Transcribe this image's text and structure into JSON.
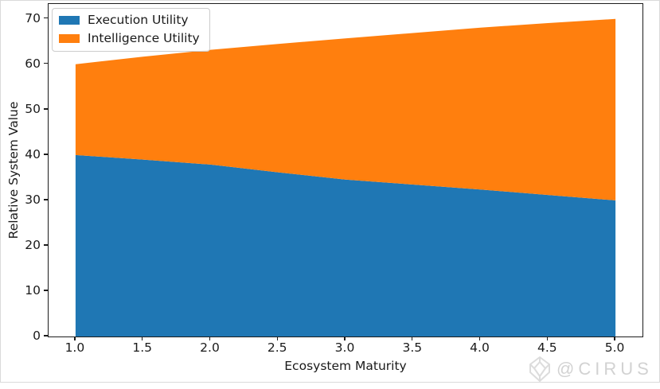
{
  "figure": {
    "watermark": {
      "text": "@CIRUS",
      "logo": "cirus-diamond-logo",
      "color": "#d2d2d2"
    },
    "border_color": "#dadada",
    "background": "#ffffff"
  },
  "chart_data": {
    "type": "area",
    "stacked": true,
    "grid": false,
    "x": [
      1.0,
      1.5,
      2.0,
      2.5,
      3.0,
      3.5,
      4.0,
      4.5,
      5.0
    ],
    "series": [
      {
        "name": "Execution Utility",
        "color": "#1f77b4",
        "values": [
          40,
          39.0,
          37.9,
          36.2,
          34.6,
          33.5,
          32.4,
          31.2,
          30
        ]
      },
      {
        "name": "Intelligence Utility",
        "color": "#ff7f0e",
        "values": [
          20,
          22.7,
          25.3,
          28.3,
          31.1,
          33.4,
          35.7,
          37.9,
          40
        ]
      }
    ],
    "stacked_totals": [
      60,
      61.7,
      63.2,
      64.5,
      65.7,
      66.9,
      68.1,
      69.1,
      70
    ],
    "xlabel": "Ecosystem Maturity",
    "ylabel": "Relative System Value",
    "xlim": [
      0.8,
      5.2
    ],
    "ylim": [
      0,
      73.3
    ],
    "xticks": {
      "values": [
        1.0,
        1.5,
        2.0,
        2.5,
        3.0,
        3.5,
        4.0,
        4.5,
        5.0
      ],
      "labels": [
        "1.0",
        "1.5",
        "2.0",
        "2.5",
        "3.0",
        "3.5",
        "4.0",
        "4.5",
        "5.0"
      ]
    },
    "yticks": {
      "values": [
        0,
        10,
        20,
        30,
        40,
        50,
        60,
        70
      ],
      "labels": [
        "0",
        "10",
        "20",
        "30",
        "40",
        "50",
        "60",
        "70"
      ]
    },
    "legend": {
      "position": "upper left"
    },
    "spine_color": "#1c1c1c"
  }
}
